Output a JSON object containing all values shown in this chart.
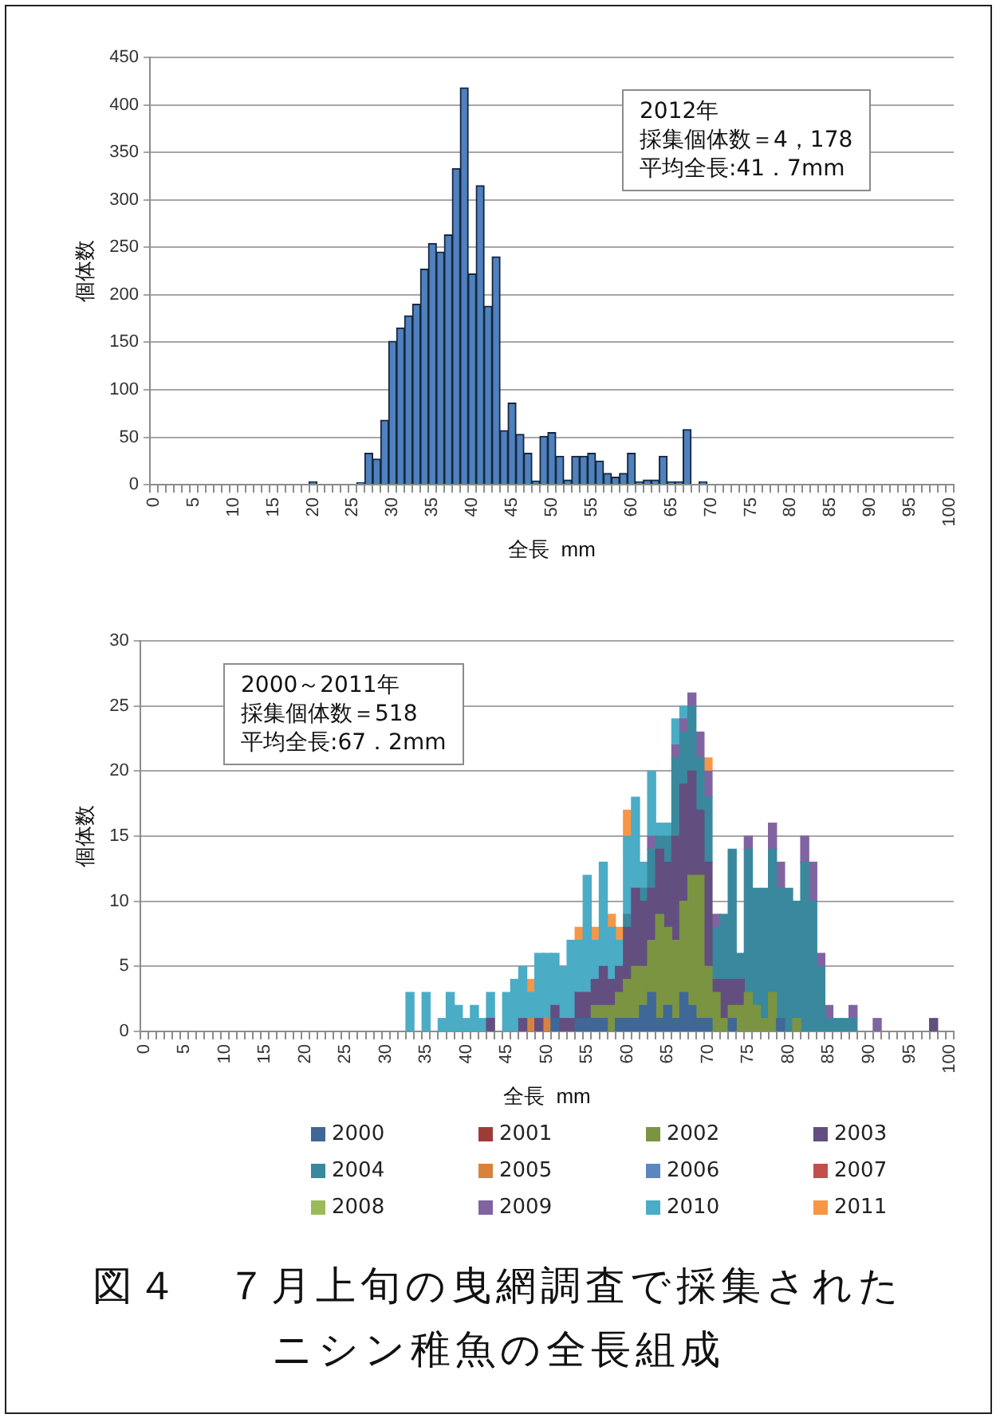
{
  "chart_data": [
    {
      "type": "bar",
      "categories": [
        "0",
        null,
        null,
        null,
        null,
        "5",
        null,
        null,
        null,
        null,
        "10",
        null,
        null,
        null,
        null,
        "15",
        null,
        null,
        null,
        null,
        "20",
        null,
        null,
        null,
        null,
        "25",
        null,
        null,
        null,
        null,
        "30",
        null,
        null,
        null,
        null,
        "35",
        null,
        null,
        null,
        null,
        "40",
        null,
        null,
        null,
        null,
        "45",
        null,
        null,
        null,
        null,
        "50",
        null,
        null,
        null,
        null,
        "55",
        null,
        null,
        null,
        null,
        "60",
        null,
        null,
        null,
        null,
        "65",
        null,
        null,
        null,
        null,
        "70",
        null,
        null,
        null,
        null,
        "75",
        null,
        null,
        null,
        null,
        "80",
        null,
        null,
        null,
        null,
        "85",
        null,
        null,
        null,
        null,
        "90",
        null,
        null,
        null,
        null,
        "95",
        null,
        null,
        null,
        null,
        "100"
      ],
      "values": [
        0,
        0,
        0,
        0,
        0,
        0,
        0,
        0,
        0,
        0,
        0,
        0,
        0,
        0,
        0,
        0,
        0,
        0,
        0,
        0,
        3,
        0,
        0,
        0,
        0,
        0,
        2,
        33,
        27,
        68,
        151,
        165,
        178,
        190,
        227,
        254,
        245,
        263,
        333,
        418,
        222,
        315,
        188,
        240,
        57,
        86,
        53,
        33,
        4,
        51,
        55,
        30,
        5,
        30,
        30,
        33,
        25,
        12,
        8,
        12,
        33,
        3,
        5,
        5,
        30,
        3,
        3,
        58,
        0,
        3,
        0,
        0,
        0,
        0,
        0,
        0,
        0,
        0,
        0,
        0,
        0,
        0,
        0,
        0,
        0,
        0,
        0,
        0,
        0,
        0,
        0,
        0,
        0,
        0,
        0,
        0,
        0,
        0,
        0,
        0,
        0
      ],
      "color": "#4f81bd",
      "ylim": [
        0,
        450
      ],
      "yticks": [
        0,
        50,
        100,
        150,
        200,
        250,
        300,
        350,
        400,
        450
      ],
      "grid": "y",
      "xlabel": "全長  mm",
      "ylabel": "個体数",
      "annotations": [
        "2012年",
        "採集個体数＝4，178",
        "平均全長:41．7mm"
      ]
    },
    {
      "type": "bar",
      "stacked": true,
      "categories": [
        "0",
        null,
        null,
        null,
        null,
        "5",
        null,
        null,
        null,
        null,
        "10",
        null,
        null,
        null,
        null,
        "15",
        null,
        null,
        null,
        null,
        "20",
        null,
        null,
        null,
        null,
        "25",
        null,
        null,
        null,
        null,
        "30",
        null,
        null,
        null,
        null,
        "35",
        null,
        null,
        null,
        null,
        "40",
        null,
        null,
        null,
        null,
        "45",
        null,
        null,
        null,
        null,
        "50",
        null,
        null,
        null,
        null,
        "55",
        null,
        null,
        null,
        null,
        "60",
        null,
        null,
        null,
        null,
        "65",
        null,
        null,
        null,
        null,
        "70",
        null,
        null,
        null,
        null,
        "75",
        null,
        null,
        null,
        null,
        "80",
        null,
        null,
        null,
        null,
        "85",
        null,
        null,
        null,
        null,
        "90",
        null,
        null,
        null,
        null,
        "95",
        null,
        null,
        null,
        null,
        "100"
      ],
      "series": [
        {
          "name": "2000",
          "color": "#3f6797",
          "values": [
            null,
            null,
            null,
            null,
            null,
            null,
            null,
            null,
            null,
            null,
            null,
            null,
            null,
            null,
            null,
            null,
            null,
            null,
            null,
            null,
            null,
            null,
            null,
            null,
            null,
            null,
            null,
            null,
            null,
            null,
            null,
            null,
            null,
            null,
            null,
            null,
            null,
            null,
            null,
            null,
            null,
            null,
            null,
            null,
            null,
            null,
            null,
            null,
            null,
            null,
            null,
            1,
            null,
            null,
            1,
            1,
            1,
            1,
            null,
            1,
            1,
            1,
            2,
            3,
            1,
            2,
            1,
            3,
            2,
            1,
            1,
            null,
            null,
            1,
            null,
            null,
            null,
            null,
            null,
            1,
            null,
            null,
            null,
            null,
            null,
            null,
            null,
            null,
            null,
            null,
            null,
            null,
            null,
            null,
            null,
            null,
            null,
            null,
            null,
            null,
            null
          ]
        },
        {
          "name": "2001",
          "color": "#9e3b38",
          "values": [
            null,
            null,
            null,
            null,
            null,
            null,
            null,
            null,
            null,
            null,
            null,
            null,
            null,
            null,
            null,
            null,
            null,
            null,
            null,
            null,
            null,
            null,
            null,
            null,
            null,
            null,
            null,
            null,
            null,
            null,
            null,
            null,
            null,
            null,
            null,
            null,
            null,
            null,
            null,
            null,
            null,
            null,
            null,
            null,
            null,
            null,
            null,
            null,
            null,
            null,
            null,
            null,
            null,
            null,
            null,
            null,
            null,
            null,
            null,
            null,
            null,
            null,
            null,
            null,
            null,
            null,
            null,
            null,
            null,
            null,
            null,
            null,
            null,
            null,
            null,
            null,
            null,
            null,
            null,
            null,
            null,
            null,
            null,
            null,
            null,
            null,
            null,
            null,
            null,
            null,
            null,
            null,
            null,
            null,
            null,
            null,
            null,
            null,
            null,
            null,
            null
          ]
        },
        {
          "name": "2002",
          "color": "#7a9442",
          "values": [
            null,
            null,
            null,
            null,
            null,
            null,
            null,
            null,
            null,
            null,
            null,
            null,
            null,
            null,
            null,
            null,
            null,
            null,
            null,
            null,
            null,
            null,
            null,
            null,
            null,
            null,
            null,
            null,
            null,
            null,
            null,
            null,
            null,
            null,
            null,
            null,
            null,
            null,
            null,
            null,
            null,
            null,
            null,
            null,
            null,
            null,
            null,
            null,
            null,
            null,
            null,
            null,
            null,
            null,
            null,
            null,
            1,
            1,
            2,
            2,
            3,
            4,
            3,
            4,
            8,
            6,
            6,
            7,
            10,
            11,
            4,
            3,
            1,
            1,
            2,
            3,
            2,
            1,
            3,
            null,
            null,
            1,
            null,
            null,
            null,
            null,
            null,
            null,
            null,
            null,
            null,
            null,
            null,
            null,
            null,
            null,
            null,
            null,
            null,
            null,
            null
          ]
        },
        {
          "name": "2003",
          "color": "#634e80",
          "values": [
            null,
            null,
            null,
            null,
            null,
            null,
            null,
            null,
            null,
            null,
            null,
            null,
            null,
            null,
            null,
            null,
            null,
            null,
            null,
            null,
            null,
            null,
            null,
            null,
            null,
            null,
            null,
            null,
            null,
            null,
            null,
            null,
            null,
            null,
            null,
            null,
            null,
            null,
            null,
            null,
            null,
            null,
            null,
            1,
            null,
            null,
            null,
            1,
            null,
            1,
            null,
            1,
            1,
            1,
            2,
            2,
            2,
            3,
            2,
            2,
            4,
            6,
            5,
            4,
            5,
            5,
            8,
            9,
            8,
            5,
            8,
            1,
            3,
            2,
            2,
            null,
            null,
            null,
            null,
            null,
            null,
            null,
            null,
            null,
            null,
            null,
            null,
            null,
            null,
            null,
            null,
            null,
            null,
            null,
            null,
            null,
            null,
            null,
            1,
            null,
            null
          ]
        },
        {
          "name": "2004",
          "color": "#39889e",
          "values": [
            null,
            null,
            null,
            null,
            null,
            null,
            null,
            null,
            null,
            null,
            null,
            null,
            null,
            null,
            null,
            null,
            null,
            null,
            null,
            null,
            null,
            null,
            null,
            null,
            null,
            null,
            null,
            null,
            null,
            null,
            null,
            null,
            null,
            null,
            null,
            null,
            null,
            null,
            null,
            null,
            null,
            null,
            null,
            null,
            null,
            null,
            null,
            null,
            null,
            null,
            null,
            null,
            null,
            null,
            null,
            null,
            null,
            null,
            null,
            null,
            1,
            null,
            1,
            3,
            1,
            2,
            6,
            4,
            5,
            4,
            5,
            4,
            5,
            10,
            2,
            11,
            9,
            10,
            11,
            10,
            11,
            9,
            13,
            10,
            5,
            1,
            1,
            1,
            1,
            null,
            null,
            null,
            null,
            null,
            null,
            null,
            null,
            null,
            null,
            null,
            null
          ]
        },
        {
          "name": "2005",
          "color": "#d9823b",
          "values": [
            null,
            null,
            null,
            null,
            null,
            null,
            null,
            null,
            null,
            null,
            null,
            null,
            null,
            null,
            null,
            null,
            null,
            null,
            null,
            null,
            null,
            null,
            null,
            null,
            null,
            null,
            null,
            null,
            null,
            null,
            null,
            null,
            null,
            null,
            null,
            null,
            null,
            null,
            null,
            null,
            null,
            null,
            null,
            null,
            null,
            null,
            null,
            null,
            1,
            null,
            1,
            null,
            null,
            null,
            null,
            null,
            null,
            null,
            null,
            null,
            null,
            null,
            null,
            null,
            null,
            null,
            null,
            null,
            null,
            null,
            null,
            null,
            null,
            null,
            null,
            null,
            null,
            null,
            null,
            null,
            null,
            null,
            null,
            null,
            null,
            null,
            null,
            null,
            null,
            null,
            null,
            null,
            null,
            null,
            null,
            null,
            null,
            null,
            null,
            null,
            null
          ]
        },
        {
          "name": "2006",
          "color": "#5b87bf",
          "values": [
            null,
            null,
            null,
            null,
            null,
            null,
            null,
            null,
            null,
            null,
            null,
            null,
            null,
            null,
            null,
            null,
            null,
            null,
            null,
            null,
            null,
            null,
            null,
            null,
            null,
            null,
            null,
            null,
            null,
            null,
            null,
            null,
            null,
            null,
            null,
            null,
            null,
            null,
            null,
            null,
            null,
            null,
            null,
            null,
            null,
            null,
            null,
            null,
            null,
            null,
            null,
            null,
            null,
            null,
            null,
            null,
            null,
            null,
            null,
            null,
            null,
            null,
            null,
            null,
            null,
            null,
            null,
            null,
            null,
            null,
            null,
            null,
            null,
            null,
            null,
            null,
            null,
            null,
            null,
            null,
            null,
            null,
            null,
            null,
            null,
            null,
            null,
            null,
            null,
            null,
            null,
            null,
            null,
            null,
            null,
            null,
            null,
            null,
            null,
            null,
            null
          ]
        },
        {
          "name": "2007",
          "color": "#c0504d",
          "values": [
            null,
            null,
            null,
            null,
            null,
            null,
            null,
            null,
            null,
            null,
            null,
            null,
            null,
            null,
            null,
            null,
            null,
            null,
            null,
            null,
            null,
            null,
            null,
            null,
            null,
            null,
            null,
            null,
            null,
            null,
            null,
            null,
            null,
            null,
            null,
            null,
            null,
            null,
            null,
            null,
            null,
            null,
            null,
            null,
            null,
            null,
            null,
            null,
            null,
            null,
            null,
            null,
            null,
            null,
            null,
            null,
            null,
            null,
            null,
            null,
            null,
            null,
            null,
            null,
            null,
            null,
            null,
            null,
            null,
            null,
            null,
            null,
            null,
            null,
            null,
            null,
            null,
            null,
            null,
            null,
            null,
            null,
            null,
            null,
            null,
            null,
            null,
            null,
            null,
            null,
            null,
            null,
            null,
            null,
            null,
            null,
            null,
            null,
            null,
            null,
            null
          ]
        },
        {
          "name": "2008",
          "color": "#9bbb59",
          "values": [
            null,
            null,
            null,
            null,
            null,
            null,
            null,
            null,
            null,
            null,
            null,
            null,
            null,
            null,
            null,
            null,
            null,
            null,
            null,
            null,
            null,
            null,
            null,
            null,
            null,
            null,
            null,
            null,
            null,
            null,
            null,
            null,
            null,
            null,
            null,
            null,
            null,
            null,
            null,
            null,
            null,
            null,
            null,
            null,
            null,
            null,
            null,
            null,
            null,
            null,
            null,
            null,
            null,
            null,
            null,
            null,
            null,
            null,
            null,
            null,
            null,
            null,
            null,
            null,
            null,
            null,
            null,
            null,
            null,
            null,
            null,
            null,
            null,
            null,
            null,
            null,
            null,
            null,
            null,
            null,
            null,
            null,
            null,
            null,
            null,
            null,
            null,
            null,
            null,
            null,
            null,
            null,
            null,
            null,
            null,
            null,
            null,
            null,
            null,
            null,
            null
          ]
        },
        {
          "name": "2009",
          "color": "#8064a2",
          "values": [
            null,
            null,
            null,
            null,
            null,
            null,
            null,
            null,
            null,
            null,
            null,
            null,
            null,
            null,
            null,
            null,
            null,
            null,
            null,
            null,
            null,
            null,
            null,
            null,
            null,
            null,
            null,
            null,
            null,
            null,
            null,
            null,
            null,
            null,
            null,
            null,
            null,
            null,
            null,
            null,
            null,
            null,
            null,
            null,
            null,
            null,
            null,
            null,
            null,
            null,
            null,
            null,
            null,
            null,
            null,
            null,
            null,
            null,
            null,
            null,
            null,
            null,
            null,
            1,
            null,
            null,
            1,
            1,
            1,
            2,
            2,
            1,
            null,
            null,
            null,
            1,
            null,
            null,
            2,
            2,
            null,
            null,
            2,
            3,
            1,
            1,
            null,
            null,
            1,
            null,
            null,
            1,
            null,
            null,
            null,
            null,
            null,
            null,
            null,
            null,
            null
          ]
        },
        {
          "name": "2010",
          "color": "#4bacc6",
          "values": [
            null,
            null,
            null,
            null,
            null,
            null,
            null,
            null,
            null,
            null,
            null,
            null,
            null,
            null,
            null,
            null,
            null,
            null,
            null,
            null,
            null,
            null,
            null,
            null,
            null,
            null,
            null,
            null,
            null,
            null,
            null,
            null,
            null,
            3,
            null,
            3,
            null,
            1,
            3,
            2,
            1,
            2,
            1,
            2,
            null,
            3,
            4,
            4,
            2,
            5,
            5,
            4,
            4,
            6,
            4,
            9,
            3,
            8,
            4,
            2,
            6,
            7,
            2,
            5,
            1,
            1,
            2,
            1,
            null,
            null,
            null,
            null,
            null,
            null,
            null,
            null,
            null,
            null,
            null,
            null,
            null,
            null,
            null,
            null,
            null,
            null,
            null,
            null,
            null,
            null,
            null,
            null,
            null,
            null,
            null,
            null,
            null,
            null,
            null,
            null,
            null
          ]
        },
        {
          "name": "2011",
          "color": "#f79646",
          "values": [
            null,
            null,
            null,
            null,
            null,
            null,
            null,
            null,
            null,
            null,
            null,
            null,
            null,
            null,
            null,
            null,
            null,
            null,
            null,
            null,
            null,
            null,
            null,
            null,
            null,
            null,
            null,
            null,
            null,
            null,
            null,
            null,
            null,
            null,
            null,
            null,
            null,
            null,
            null,
            null,
            null,
            null,
            null,
            null,
            null,
            null,
            null,
            null,
            1,
            null,
            null,
            null,
            null,
            null,
            1,
            null,
            1,
            null,
            1,
            1,
            2,
            null,
            null,
            null,
            null,
            null,
            null,
            null,
            null,
            null,
            1,
            null,
            null,
            null,
            null,
            null,
            null,
            null,
            null,
            null,
            null,
            null,
            null,
            null,
            null,
            null,
            null,
            null,
            null,
            null,
            null,
            null,
            null,
            null,
            null,
            null,
            null,
            null,
            null,
            null,
            null
          ]
        }
      ],
      "ylim": [
        0,
        30
      ],
      "yticks": [
        0,
        5,
        10,
        15,
        20,
        25,
        30
      ],
      "grid": "y",
      "legend": "bottom",
      "xlabel": "全長  mm",
      "ylabel": "個体数",
      "annotations": [
        "2000～2011年",
        "採集個体数＝518",
        "平均全長:67．2mm",
        "図４　７月上旬の曳網調査で採集されたニシン稚魚の全長組成"
      ]
    }
  ]
}
